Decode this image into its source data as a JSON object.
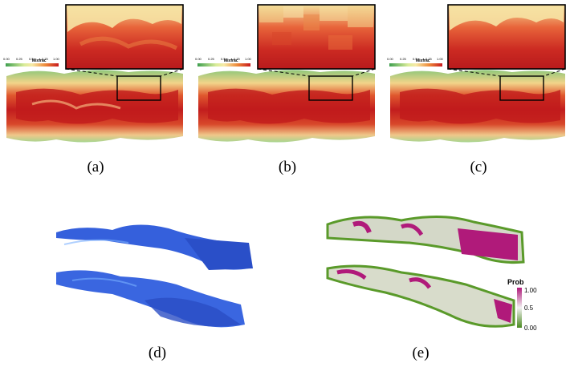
{
  "colorbar_mixfrac": {
    "title": "Mixfrac",
    "ticks": [
      "0.00",
      "0.25",
      "0.5",
      "0.75",
      "1.00"
    ]
  },
  "colorbar_prob": {
    "title": "Prob",
    "ticks": [
      "1.00",
      "0.5",
      "0.00"
    ]
  },
  "panels": [
    {
      "id": "a",
      "caption": "(a)"
    },
    {
      "id": "b",
      "caption": "(b)"
    },
    {
      "id": "c",
      "caption": "(c)"
    },
    {
      "id": "d",
      "caption": "(d)"
    },
    {
      "id": "e",
      "caption": "(e)"
    }
  ],
  "colors": {
    "mix_low": "#3f9f4f",
    "mix_mid": "#f5e9a8",
    "mix_high": "#c8191e",
    "surface": "#2f57d8",
    "prob_low": "#5a9a2a",
    "prob_high": "#b01a7a"
  }
}
